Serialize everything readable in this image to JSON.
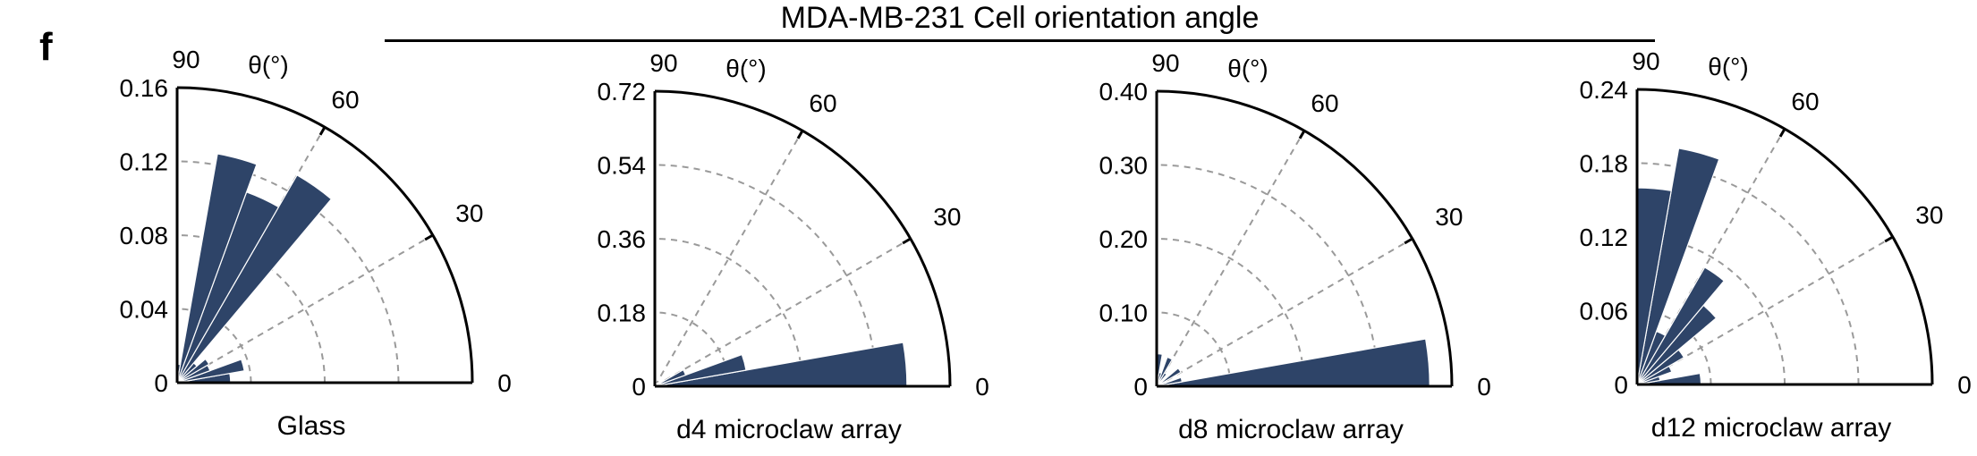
{
  "panel_label": "f",
  "figure_title": "MDA-MB-231 Cell orientation angle",
  "chart_data": [
    {
      "type": "polar-bar",
      "xlabel": "Glass",
      "theta_label": "θ(°)",
      "theta_ticks": [
        "90",
        "60",
        "30",
        "0"
      ],
      "r_ticks": [
        "0",
        "0.04",
        "0.08",
        "0.12",
        "0.16"
      ],
      "rlim": [
        0,
        0.16
      ],
      "bin_width_deg": 10,
      "bin_centers_deg": [
        5,
        15,
        25,
        35,
        45,
        55,
        65,
        75,
        85
      ],
      "values": [
        0.029,
        0.037,
        0.019,
        0.02,
        0.014,
        0.13,
        0.11,
        0.126,
        0.01
      ]
    },
    {
      "type": "polar-bar",
      "xlabel": "d4 microclaw array",
      "theta_label": "θ(°)",
      "theta_ticks": [
        "90",
        "60",
        "30",
        "0"
      ],
      "r_ticks": [
        "0",
        "0.18",
        "0.36",
        "0.54",
        "0.72"
      ],
      "rlim": [
        0,
        0.72
      ],
      "bin_width_deg": 10,
      "bin_centers_deg": [
        5,
        15,
        25,
        35,
        45,
        55,
        65,
        75,
        85
      ],
      "values": [
        0.615,
        0.226,
        0.08,
        0.016,
        0.01,
        0.008,
        0.006,
        0.005,
        0.004
      ]
    },
    {
      "type": "polar-bar",
      "xlabel": "d8 microclaw array",
      "theta_label": "θ(°)",
      "theta_ticks": [
        "90",
        "60",
        "30",
        "0"
      ],
      "r_ticks": [
        "0",
        "0.10",
        "0.20",
        "0.30",
        "0.40"
      ],
      "rlim": [
        0,
        0.4
      ],
      "bin_width_deg": 10,
      "bin_centers_deg": [
        5,
        15,
        25,
        35,
        45,
        55,
        65,
        75,
        85
      ],
      "values": [
        0.37,
        0.035,
        0.012,
        0.038,
        0.01,
        0.021,
        0.042,
        0.019,
        0.044
      ]
    },
    {
      "type": "polar-bar",
      "xlabel": "d12 microclaw array",
      "theta_label": "θ(°)",
      "theta_ticks": [
        "90",
        "60",
        "30",
        "0"
      ],
      "r_ticks": [
        "0",
        "0.06",
        "0.12",
        "0.18",
        "0.24"
      ],
      "rlim": [
        0,
        0.24
      ],
      "bin_width_deg": 10,
      "bin_centers_deg": [
        5,
        15,
        25,
        35,
        45,
        55,
        65,
        75,
        85
      ],
      "values": [
        0.052,
        0.019,
        0.03,
        0.044,
        0.084,
        0.11,
        0.046,
        0.195,
        0.16
      ]
    }
  ],
  "colors": {
    "bar": "#2e4468",
    "axis": "#000000",
    "grid": "#9a9a9a"
  }
}
